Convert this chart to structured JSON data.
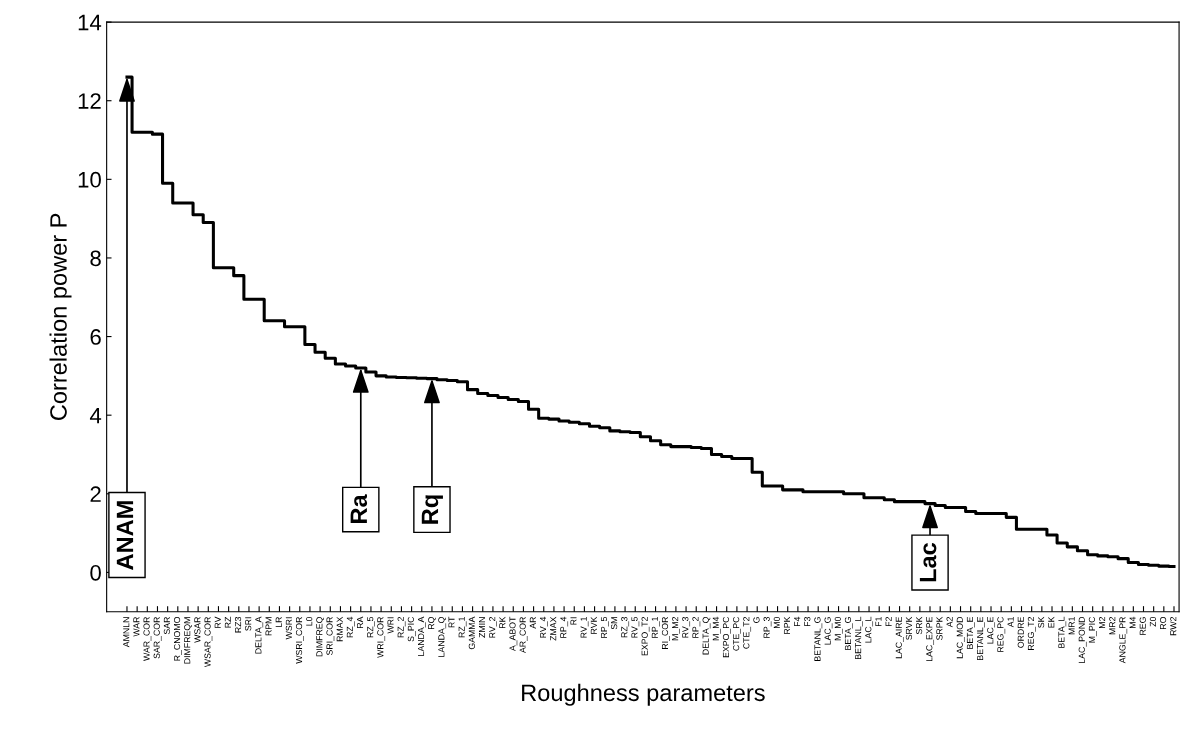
{
  "chart_data": {
    "type": "step",
    "xlabel": "Roughness parameters",
    "ylabel": "Correlation power P",
    "categories": [
      "AMNLN",
      "WAR",
      "WAR_COR",
      "SAR_COR",
      "SAR",
      "R_CNOMO",
      "DIMFREQM",
      "WSAR",
      "WSAR_COR",
      "RV",
      "RZ",
      "RZ3",
      "SRI",
      "DELTA_A",
      "RPM",
      "LR",
      "WSRI",
      "WSRI_COR",
      "L0",
      "DIMFREQ",
      "SRI_COR",
      "RMAX",
      "RZ_4",
      "RA",
      "RZ_5",
      "WRI_COR",
      "WRI",
      "RZ_2",
      "S_PIC",
      "LANDA_A",
      "RQ",
      "LANDA_Q",
      "RT",
      "RZ_1",
      "GAMMA",
      "ZMIN",
      "RV_2",
      "RK",
      "A_ABOT",
      "AR_COR",
      "AR",
      "RV_4",
      "ZMAX",
      "RP_4",
      "RI",
      "RV_1",
      "RVK",
      "RP_5",
      "SM",
      "RZ_3",
      "RV_5",
      "EXPO_T2",
      "RP_1",
      "RI_COR",
      "M_M2",
      "RV_3",
      "RP_2",
      "DELTA_Q",
      "M_M4",
      "EXPO_PC",
      "CTE_PC",
      "CTE_T2",
      "G",
      "RP_3",
      "M0",
      "RPK",
      "F4",
      "F3",
      "BETANL_G",
      "LAC_G",
      "M_M0",
      "BETA_G",
      "BETANL_L",
      "LAC_L",
      "F1",
      "F2",
      "LAC_AIRE",
      "SRVK",
      "SRK",
      "LAC_EXPE",
      "SRPK",
      "A2",
      "LAC_MOD",
      "BETA_E",
      "BETANL_E",
      "LAC_E",
      "REG_PC",
      "A1",
      "ORDRE",
      "REG_T2",
      "SK",
      "EK",
      "BETA_L",
      "MR1",
      "LAC_POND",
      "M_PIC",
      "M2",
      "MR2",
      "ANGLE_PR",
      "M4",
      "REG",
      "Z0",
      "RO",
      "RW2"
    ],
    "values": [
      12.6,
      11.2,
      11.2,
      11.15,
      9.9,
      9.4,
      9.4,
      9.1,
      8.9,
      7.75,
      7.75,
      7.55,
      6.95,
      6.95,
      6.4,
      6.4,
      6.25,
      6.25,
      5.8,
      5.6,
      5.45,
      5.3,
      5.25,
      5.2,
      5.1,
      5.0,
      4.97,
      4.96,
      4.95,
      4.94,
      4.93,
      4.9,
      4.88,
      4.85,
      4.65,
      4.55,
      4.5,
      4.45,
      4.4,
      4.35,
      4.15,
      3.92,
      3.9,
      3.85,
      3.82,
      3.78,
      3.72,
      3.68,
      3.6,
      3.58,
      3.56,
      3.45,
      3.35,
      3.25,
      3.2,
      3.2,
      3.18,
      3.15,
      3.0,
      2.95,
      2.9,
      2.9,
      2.55,
      2.2,
      2.2,
      2.1,
      2.1,
      2.05,
      2.05,
      2.05,
      2.05,
      2.0,
      2.0,
      1.9,
      1.9,
      1.85,
      1.8,
      1.8,
      1.8,
      1.75,
      1.7,
      1.65,
      1.65,
      1.55,
      1.5,
      1.5,
      1.5,
      1.4,
      1.1,
      1.1,
      1.1,
      0.95,
      0.75,
      0.65,
      0.55,
      0.45,
      0.42,
      0.4,
      0.35,
      0.25,
      0.2,
      0.18,
      0.16,
      0.15
    ],
    "color": "#000000",
    "ylim": [
      -1,
      14
    ],
    "yticks": [
      0,
      2,
      4,
      6,
      8,
      10,
      12,
      14
    ],
    "grid": false,
    "marker": "none",
    "line_style": "solid",
    "annotations": [
      {
        "text": "ANAM",
        "x": "AMNLN",
        "y": 12.6
      },
      {
        "text": "Ra",
        "x": "RA",
        "y": 5.2
      },
      {
        "text": "Rq",
        "x": "RQ",
        "y": 4.93
      },
      {
        "text": "Lac",
        "x": "LAC_EXPE",
        "y": 1.75
      }
    ]
  }
}
